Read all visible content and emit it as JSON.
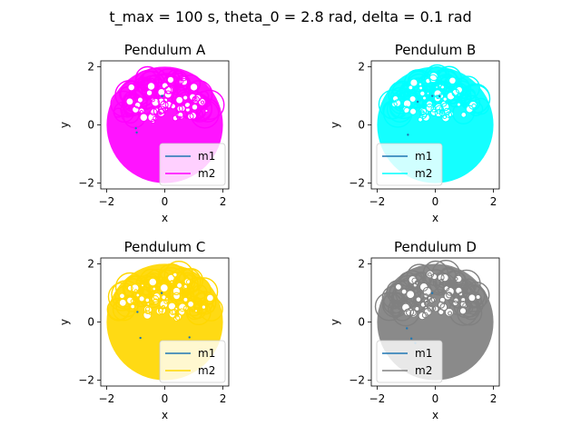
{
  "suptitle": "t_max = 100 s, theta_0 = 2.8 rad, delta = 0.1 rad",
  "chart_data": [
    {
      "type": "line",
      "title": "Pendulum A",
      "xlabel": "x",
      "ylabel": "y",
      "xlim": [
        -2.2,
        2.2
      ],
      "ylim": [
        -2.2,
        2.2
      ],
      "xticks": [
        -2,
        0,
        2
      ],
      "yticks": [
        -2,
        0,
        2
      ],
      "grid": false,
      "legend_position": "lower-right",
      "series": [
        {
          "name": "m1",
          "color": "#1f77b4",
          "path": "circle of radius 1"
        },
        {
          "name": "m2",
          "color": "#ff00ff",
          "path": "dense trajectory within radius 2"
        }
      ]
    },
    {
      "type": "line",
      "title": "Pendulum B",
      "xlabel": "x",
      "ylabel": "y",
      "xlim": [
        -2.2,
        2.2
      ],
      "ylim": [
        -2.2,
        2.2
      ],
      "xticks": [
        -2,
        0,
        2
      ],
      "yticks": [
        -2,
        0,
        2
      ],
      "grid": false,
      "legend_position": "lower-left",
      "series": [
        {
          "name": "m1",
          "color": "#1f77b4",
          "path": "circle of radius 1"
        },
        {
          "name": "m2",
          "color": "#00ffff",
          "path": "dense trajectory within radius 2"
        }
      ]
    },
    {
      "type": "line",
      "title": "Pendulum C",
      "xlabel": "x",
      "ylabel": "y",
      "xlim": [
        -2.2,
        2.2
      ],
      "ylim": [
        -2.2,
        2.2
      ],
      "xticks": [
        -2,
        0,
        2
      ],
      "yticks": [
        -2,
        0,
        2
      ],
      "grid": false,
      "legend_position": "lower-right",
      "series": [
        {
          "name": "m1",
          "color": "#1f77b4",
          "path": "circle of radius 1"
        },
        {
          "name": "m2",
          "color": "#ffd700",
          "path": "dense trajectory within radius 2"
        }
      ]
    },
    {
      "type": "line",
      "title": "Pendulum D",
      "xlabel": "x",
      "ylabel": "y",
      "xlim": [
        -2.2,
        2.2
      ],
      "ylim": [
        -2.2,
        2.2
      ],
      "xticks": [
        -2,
        0,
        2
      ],
      "yticks": [
        -2,
        0,
        2
      ],
      "grid": false,
      "legend_position": "lower-left",
      "series": [
        {
          "name": "m1",
          "color": "#1f77b4",
          "path": "circle of radius 1"
        },
        {
          "name": "m2",
          "color": "#808080",
          "path": "dense trajectory within radius 2"
        }
      ]
    }
  ]
}
